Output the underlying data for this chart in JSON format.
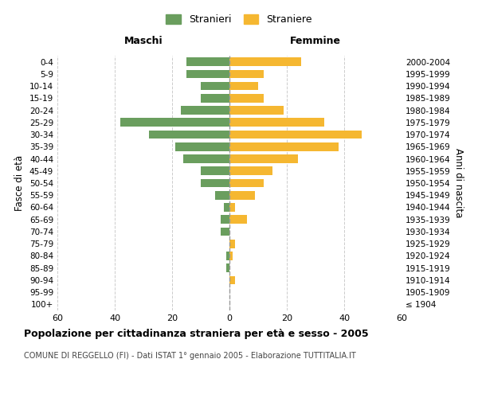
{
  "age_groups": [
    "100+",
    "95-99",
    "90-94",
    "85-89",
    "80-84",
    "75-79",
    "70-74",
    "65-69",
    "60-64",
    "55-59",
    "50-54",
    "45-49",
    "40-44",
    "35-39",
    "30-34",
    "25-29",
    "20-24",
    "15-19",
    "10-14",
    "5-9",
    "0-4"
  ],
  "birth_years": [
    "≤ 1904",
    "1905-1909",
    "1910-1914",
    "1915-1919",
    "1920-1924",
    "1925-1929",
    "1930-1934",
    "1935-1939",
    "1940-1944",
    "1945-1949",
    "1950-1954",
    "1955-1959",
    "1960-1964",
    "1965-1969",
    "1970-1974",
    "1975-1979",
    "1980-1984",
    "1985-1989",
    "1990-1994",
    "1995-1999",
    "2000-2004"
  ],
  "males": [
    0,
    0,
    0,
    1,
    1,
    0,
    3,
    3,
    2,
    5,
    10,
    10,
    16,
    19,
    28,
    38,
    17,
    10,
    10,
    15,
    15
  ],
  "females": [
    0,
    0,
    2,
    0,
    1,
    2,
    0,
    6,
    2,
    9,
    12,
    15,
    24,
    38,
    46,
    33,
    19,
    12,
    10,
    12,
    25
  ],
  "male_color": "#6a9e5e",
  "female_color": "#f5b731",
  "title": "Popolazione per cittadinanza straniera per età e sesso - 2005",
  "subtitle": "COMUNE DI REGGELLO (FI) - Dati ISTAT 1° gennaio 2005 - Elaborazione TUTTITALIA.IT",
  "xlabel_left": "Maschi",
  "xlabel_right": "Femmine",
  "ylabel_left": "Fasce di età",
  "ylabel_right": "Anni di nascita",
  "legend_male": "Stranieri",
  "legend_female": "Straniere",
  "xlim": 60,
  "background_color": "#ffffff",
  "grid_color": "#cccccc"
}
